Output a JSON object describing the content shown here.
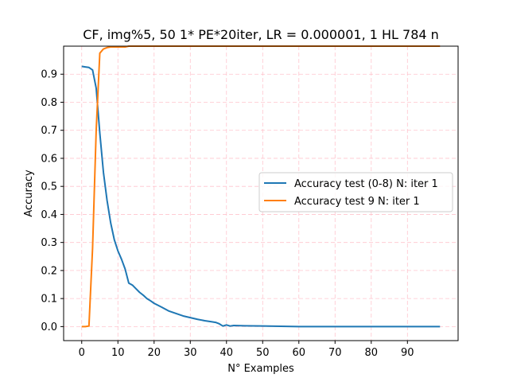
{
  "chart_data": {
    "type": "line",
    "title": "CF, img%5, 50 1* PE*20iter, LR = 0.000001, 1 HL  784 n",
    "xlabel": "N° Examples",
    "ylabel": "Accuracy",
    "xlim": [
      -5,
      104
    ],
    "ylim": [
      -0.05,
      1.0
    ],
    "xticks": [
      0,
      10,
      20,
      30,
      40,
      50,
      60,
      70,
      80,
      90
    ],
    "yticks": [
      0.0,
      0.1,
      0.2,
      0.3,
      0.4,
      0.5,
      0.6,
      0.7,
      0.8,
      0.9
    ],
    "grid": true,
    "legend_position": "center-right",
    "series": [
      {
        "name": "Accuracy test (0-8) N: iter 1",
        "color": "#1f77b4",
        "x": [
          0,
          1,
          2,
          3,
          4,
          5,
          6,
          7,
          8,
          9,
          10,
          11,
          12,
          13,
          14,
          15,
          16,
          17,
          18,
          19,
          20,
          22,
          24,
          26,
          28,
          30,
          32,
          34,
          36,
          37,
          38,
          39,
          40,
          41,
          42,
          45,
          50,
          55,
          60,
          70,
          80,
          90,
          99
        ],
        "y": [
          0.928,
          0.926,
          0.924,
          0.915,
          0.85,
          0.69,
          0.55,
          0.45,
          0.37,
          0.31,
          0.27,
          0.24,
          0.205,
          0.155,
          0.148,
          0.135,
          0.122,
          0.112,
          0.1,
          0.092,
          0.083,
          0.07,
          0.056,
          0.047,
          0.038,
          0.032,
          0.026,
          0.021,
          0.017,
          0.015,
          0.01,
          0.002,
          0.006,
          0.002,
          0.004,
          0.003,
          0.002,
          0.001,
          0.0,
          0.0,
          0.0,
          0.0,
          0.0
        ]
      },
      {
        "name": "Accuracy test 9 N: iter 1",
        "color": "#ff7f0e",
        "x": [
          0,
          1,
          2,
          3,
          4,
          5,
          6,
          7,
          8,
          9,
          10,
          11,
          12,
          13,
          14,
          20,
          30,
          40,
          50,
          60,
          70,
          80,
          90,
          99
        ],
        "y": [
          0.0,
          0.0,
          0.002,
          0.28,
          0.7,
          0.975,
          0.99,
          0.995,
          0.997,
          0.997,
          0.997,
          0.997,
          0.997,
          1.0,
          1.0,
          1.0,
          1.0,
          1.0,
          1.0,
          1.0,
          1.0,
          1.0,
          1.0,
          1.0
        ]
      }
    ]
  }
}
